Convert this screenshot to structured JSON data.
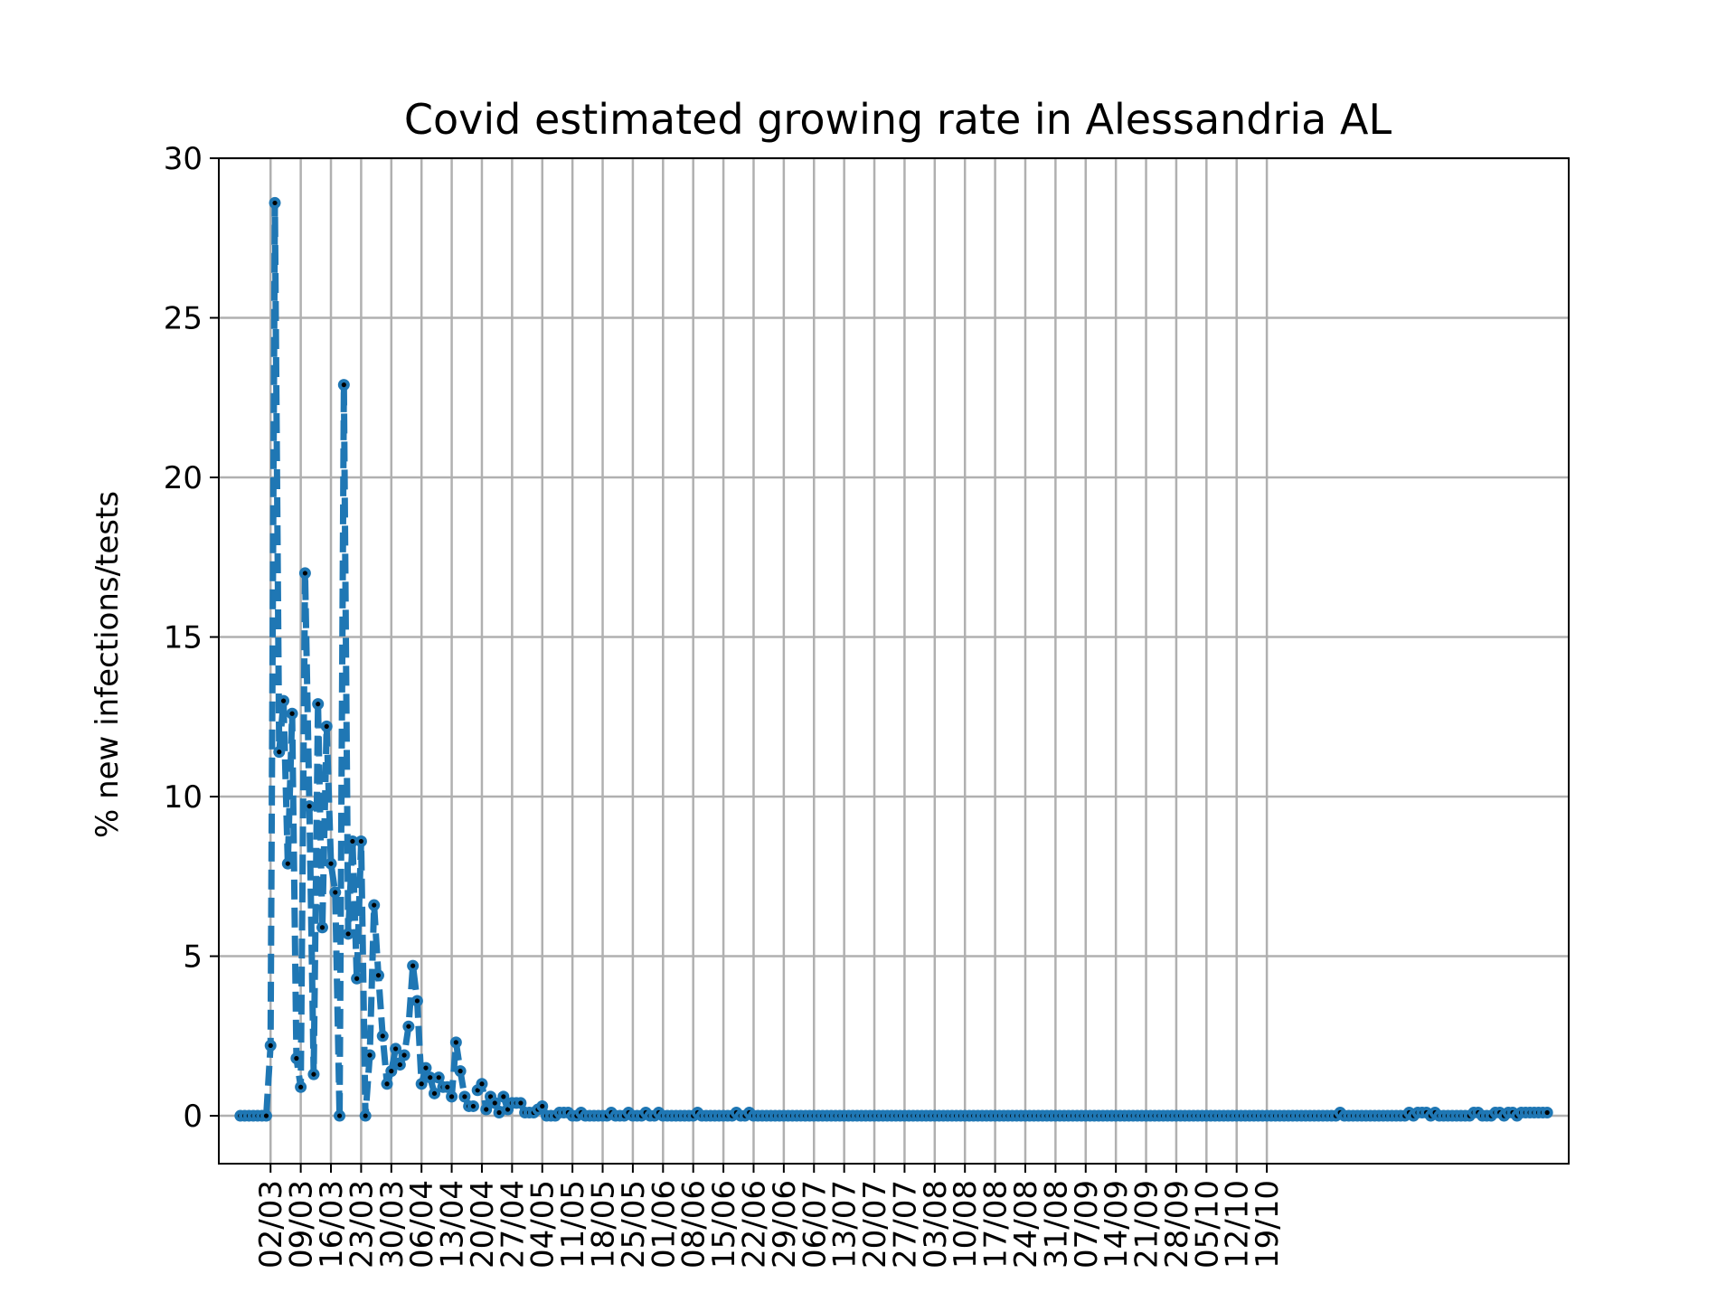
{
  "chart_data": {
    "type": "line",
    "title": "Covid estimated growing rate in Alessandria AL",
    "xlabel": "",
    "ylabel": "% new infections/tests",
    "ylim": [
      -1.5,
      30
    ],
    "yticks": [
      0,
      5,
      10,
      15,
      20,
      25,
      30
    ],
    "grid": true,
    "legend": "none",
    "line_style": "dashed",
    "marker": "dot",
    "colors": {
      "series": "#1f77b4",
      "marker_center": "#000000",
      "grid": "#b0b0b0",
      "axes": "#000000"
    },
    "x_start_date": "2020-02-24",
    "x_tick_labels": [
      "02/03",
      "09/03",
      "16/03",
      "23/03",
      "30/03",
      "06/04",
      "13/04",
      "20/04",
      "27/04",
      "04/05",
      "11/05",
      "18/05",
      "25/05",
      "01/06",
      "08/06",
      "15/06",
      "22/06",
      "29/06",
      "06/07",
      "13/07",
      "20/07",
      "27/07",
      "03/08",
      "10/08",
      "17/08",
      "24/08",
      "31/08",
      "07/09",
      "14/09",
      "21/09",
      "28/09",
      "05/10",
      "12/10",
      "19/10"
    ],
    "series": [
      {
        "values": [
          0,
          0,
          0,
          0,
          0,
          0,
          0,
          2.2,
          28.6,
          11.4,
          13.0,
          7.9,
          12.6,
          1.8,
          0.9,
          17.0,
          9.7,
          1.3,
          12.9,
          5.9,
          12.2,
          7.9,
          7.0,
          0,
          22.9,
          5.7,
          8.6,
          4.3,
          8.6,
          0,
          1.9,
          6.6,
          4.4,
          2.5,
          1.0,
          1.4,
          2.1,
          1.6,
          1.9,
          2.8,
          4.7,
          3.6,
          1.0,
          1.5,
          1.2,
          0.7,
          1.2,
          0.9,
          0.9,
          0.6,
          2.3,
          1.4,
          0.6,
          0.3,
          0.3,
          0.8,
          1.0,
          0.2,
          0.6,
          0.4,
          0.1,
          0.6,
          0.2,
          0.4,
          0.4,
          0.4,
          0.1,
          0.1,
          0.1,
          0.2,
          0.3,
          0.0,
          0.0,
          0.0,
          0.1,
          0.1,
          0.1,
          0.0,
          0.0,
          0.1,
          0.0,
          0.0,
          0.0,
          0.0,
          0.0,
          0.0,
          0.1,
          0.0,
          0.0,
          0.0,
          0.1,
          0.0,
          0.0,
          0.0,
          0.1,
          0.0,
          0.0,
          0.1,
          0.0,
          0.0,
          0.0,
          0.0,
          0.0,
          0.0,
          0.0,
          0.0,
          0.1,
          0.0,
          0.0,
          0.0,
          0.0,
          0.0,
          0.0,
          0.0,
          0.0,
          0.1,
          0.0,
          0.0,
          0.1,
          0.0,
          0.0,
          0.0,
          0.0,
          0.0,
          0.0,
          0.0,
          0.0,
          0.0,
          0.0,
          0.0,
          0.0,
          0.0,
          0.0,
          0.0,
          0.0,
          0.0,
          0.0,
          0.0,
          0.0,
          0.0,
          0.0,
          0.0,
          0.0,
          0.0,
          0.0,
          0.0,
          0.0,
          0.0,
          0.0,
          0.0,
          0.0,
          0.0,
          0.0,
          0.0,
          0.0,
          0.0,
          0.0,
          0.0,
          0.0,
          0.0,
          0.0,
          0.0,
          0.0,
          0.0,
          0.0,
          0.0,
          0.0,
          0.0,
          0.0,
          0.0,
          0.0,
          0.0,
          0.0,
          0.0,
          0.0,
          0.0,
          0.0,
          0.0,
          0.0,
          0.0,
          0.0,
          0.0,
          0.0,
          0.0,
          0.0,
          0.0,
          0.0,
          0.0,
          0.0,
          0.0,
          0.0,
          0.0,
          0.0,
          0.0,
          0.0,
          0.0,
          0.0,
          0.0,
          0.0,
          0.0,
          0.0,
          0.0,
          0.0,
          0.0,
          0.0,
          0.0,
          0.0,
          0.0,
          0.0,
          0.0,
          0.0,
          0.0,
          0.0,
          0.0,
          0.0,
          0.0,
          0.0,
          0.0,
          0.0,
          0.0,
          0.0,
          0.0,
          0.0,
          0.0,
          0.0,
          0.0,
          0.0,
          0.0,
          0.0,
          0.0,
          0.0,
          0.0,
          0.0,
          0.0,
          0.0,
          0.0,
          0.0,
          0.0,
          0.0,
          0.0,
          0.0,
          0.0,
          0.0,
          0.0,
          0.0,
          0.0,
          0.0,
          0.0,
          0.0,
          0.0,
          0.0,
          0.0,
          0.0,
          0.0,
          0.0,
          0.1,
          0.0,
          0.0,
          0.0,
          0.0,
          0.0,
          0.0,
          0.0,
          0.0,
          0.0,
          0.0,
          0.0,
          0.0,
          0.0,
          0.0,
          0.0,
          0.1,
          0.0,
          0.1,
          0.1,
          0.1,
          0.0,
          0.1,
          0.0,
          0.0,
          0.0,
          0.0,
          0.0,
          0.0,
          0.0,
          0.0,
          0.1,
          0.1,
          0.0,
          0.0,
          0.0,
          0.1,
          0.1,
          0.0,
          0.1,
          0.1,
          0.0,
          0.1,
          0.1,
          0.1,
          0.1,
          0.1,
          0.1,
          0.1
        ]
      }
    ]
  }
}
